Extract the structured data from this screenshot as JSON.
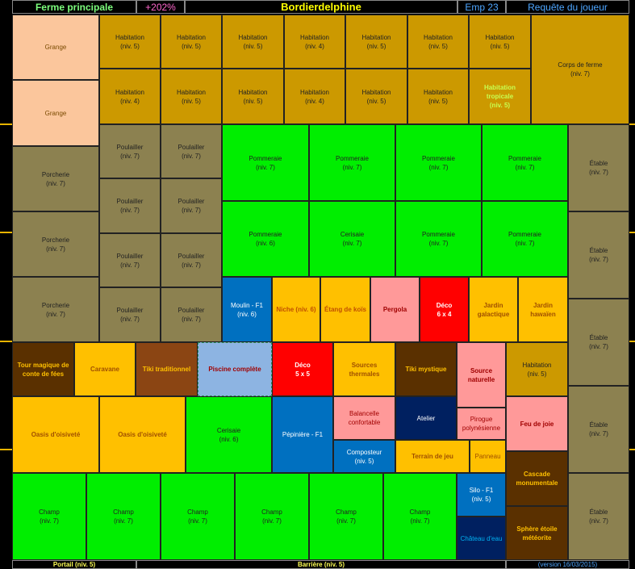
{
  "header": {
    "farm": "Ferme principale",
    "bonus": "+202%",
    "player": "Bordierdelphine",
    "emp": "Emp 23",
    "request": "Requête du joueur"
  },
  "footer": {
    "portal": "Portail (niv. 5)",
    "barrier": "Barrière (niv. 5)",
    "version": "(version 16/03/2015)"
  },
  "colors": {
    "grange": "#fbc69c",
    "habitation": "#cc9900",
    "poulailler": "#8c8150",
    "pommeraie": "#00ee00",
    "moulin": "#0070c0",
    "deco_yellow": "#ffc000",
    "pergola": "#ff9999",
    "deco_red": "#ff0000",
    "piscine": "#8db4e2",
    "dark_brown": "#5a3000",
    "tiki": "#8b4513",
    "navy": "#002060"
  },
  "cells": [
    {
      "name": "Grange",
      "color": "#fbc69c",
      "fg": "#7a4a00",
      "bold": false
    },
    {
      "name": "Grange",
      "color": "#fbc69c",
      "fg": "#7a4a00",
      "bold": false
    },
    {
      "name": "Habitation\n(niv. 5)",
      "color": "#cc9900",
      "fg": "#222",
      "bold": false
    },
    {
      "name": "Habitation\n(niv. 5)",
      "color": "#cc9900",
      "fg": "#222",
      "bold": false
    },
    {
      "name": "Habitation\n(niv. 5)",
      "color": "#cc9900",
      "fg": "#222",
      "bold": false
    },
    {
      "name": "Habitation\n(niv. 4)",
      "color": "#cc9900",
      "fg": "#222",
      "bold": false
    },
    {
      "name": "Habitation\n(niv. 5)",
      "color": "#cc9900",
      "fg": "#222",
      "bold": false
    },
    {
      "name": "Habitation\n(niv. 5)",
      "color": "#cc9900",
      "fg": "#222",
      "bold": false
    },
    {
      "name": "Habitation\n(niv. 5)",
      "color": "#cc9900",
      "fg": "#222",
      "bold": false
    },
    {
      "name": "Corps de ferme\n(niv. 7)",
      "color": "#cc9900",
      "fg": "#222",
      "bold": false
    },
    {
      "name": "Habitation\n(niv. 4)",
      "color": "#cc9900",
      "fg": "#222",
      "bold": false
    },
    {
      "name": "Habitation\n(niv. 5)",
      "color": "#cc9900",
      "fg": "#222",
      "bold": false
    },
    {
      "name": "Habitation\n(niv. 5)",
      "color": "#cc9900",
      "fg": "#222",
      "bold": false
    },
    {
      "name": "Habitation\n(niv. 4)",
      "color": "#cc9900",
      "fg": "#222",
      "bold": false
    },
    {
      "name": "Habitation\n(niv. 5)",
      "color": "#cc9900",
      "fg": "#222",
      "bold": false
    },
    {
      "name": "Habitation\n(niv. 5)",
      "color": "#cc9900",
      "fg": "#222",
      "bold": false
    },
    {
      "name": "Habitation\ntropicale\n(niv. 5)",
      "color": "#cc9900",
      "fg": "#c8ff50",
      "bold": true
    },
    {
      "name": "Porcherie\n(niv. 7)",
      "color": "#8c8150",
      "fg": "#222",
      "bold": false
    },
    {
      "name": "Porcherie\n(niv. 7)",
      "color": "#8c8150",
      "fg": "#222",
      "bold": false
    },
    {
      "name": "Porcherie\n(niv. 7)",
      "color": "#8c8150",
      "fg": "#222",
      "bold": false
    },
    {
      "name": "Poulailler\n(niv. 7)",
      "color": "#8c8150",
      "fg": "#222",
      "bold": false
    },
    {
      "name": "Poulailler\n(niv. 7)",
      "color": "#8c8150",
      "fg": "#222",
      "bold": false
    },
    {
      "name": "Poulailler\n(niv. 7)",
      "color": "#8c8150",
      "fg": "#222",
      "bold": false
    },
    {
      "name": "Poulailler\n(niv. 7)",
      "color": "#8c8150",
      "fg": "#222",
      "bold": false
    },
    {
      "name": "Poulailler\n(niv. 7)",
      "color": "#8c8150",
      "fg": "#222",
      "bold": false
    },
    {
      "name": "Poulailler\n(niv. 7)",
      "color": "#8c8150",
      "fg": "#222",
      "bold": false
    },
    {
      "name": "Poulailler\n(niv. 7)",
      "color": "#8c8150",
      "fg": "#222",
      "bold": false
    },
    {
      "name": "Poulailler\n(niv. 7)",
      "color": "#8c8150",
      "fg": "#222",
      "bold": false
    },
    {
      "name": "Pommeraie\n(niv. 7)",
      "color": "#00ee00",
      "fg": "#222",
      "bold": false
    },
    {
      "name": "Pommeraie\n(niv. 7)",
      "color": "#00ee00",
      "fg": "#222",
      "bold": false
    },
    {
      "name": "Pommeraie\n(niv. 7)",
      "color": "#00ee00",
      "fg": "#222",
      "bold": false
    },
    {
      "name": "Pommeraie\n(niv. 7)",
      "color": "#00ee00",
      "fg": "#222",
      "bold": false
    },
    {
      "name": "Pommeraie\n(niv. 6)",
      "color": "#00ee00",
      "fg": "#222",
      "bold": false
    },
    {
      "name": "Cerisaie\n(niv. 7)",
      "color": "#00ee00",
      "fg": "#222",
      "bold": false
    },
    {
      "name": "Pommeraie\n(niv. 7)",
      "color": "#00ee00",
      "fg": "#222",
      "bold": false
    },
    {
      "name": "Pommeraie\n(niv. 7)",
      "color": "#00ee00",
      "fg": "#222",
      "bold": false
    },
    {
      "name": "Étable\n(niv. 7)",
      "color": "#8c8150",
      "fg": "#222",
      "bold": false
    },
    {
      "name": "Étable\n(niv. 7)",
      "color": "#8c8150",
      "fg": "#222",
      "bold": false
    },
    {
      "name": "Étable\n(niv. 7)",
      "color": "#8c8150",
      "fg": "#222",
      "bold": false
    },
    {
      "name": "Étable\n(niv. 7)",
      "color": "#8c8150",
      "fg": "#222",
      "bold": false
    },
    {
      "name": "Étable\n(niv. 7)",
      "color": "#8c8150",
      "fg": "#222",
      "bold": false
    },
    {
      "name": "Moulin - F1\n(niv. 6)",
      "color": "#0070c0",
      "fg": "#fff",
      "bold": false
    },
    {
      "name": "Niche (niv. 6)",
      "color": "#ffc000",
      "fg": "#c05000",
      "bold": true
    },
    {
      "name": "Étang de koïs",
      "color": "#ffc000",
      "fg": "#c05000",
      "bold": true
    },
    {
      "name": "Pergola",
      "color": "#ff9999",
      "fg": "#a00000",
      "bold": true
    },
    {
      "name": "Déco\n6 x 4",
      "color": "#ff0000",
      "fg": "#fff",
      "bold": true
    },
    {
      "name": "Jardin\ngalactique",
      "color": "#ffc000",
      "fg": "#a05000",
      "bold": true
    },
    {
      "name": "Jardin hawaïen",
      "color": "#ffc000",
      "fg": "#a05000",
      "bold": true
    },
    {
      "name": "Tour magique de\nconte de fées",
      "color": "#5a3000",
      "fg": "#ffc000",
      "bold": true
    },
    {
      "name": "Caravane",
      "color": "#ffc000",
      "fg": "#a05000",
      "bold": true
    },
    {
      "name": "Tiki traditionnel",
      "color": "#8b4513",
      "fg": "#ffc000",
      "bold": true
    },
    {
      "name": "Piscine complète",
      "color": "#8db4e2",
      "fg": "#a00000",
      "bold": true
    },
    {
      "name": "Déco\n5 x 5",
      "color": "#ff0000",
      "fg": "#fff",
      "bold": true
    },
    {
      "name": "Sources thermales",
      "color": "#ffc000",
      "fg": "#a05000",
      "bold": true
    },
    {
      "name": "Tiki mystique",
      "color": "#5a3000",
      "fg": "#ffc000",
      "bold": true
    },
    {
      "name": "Source\nnaturelle",
      "color": "#ff9999",
      "fg": "#a00000",
      "bold": true
    },
    {
      "name": "Habitation\n(niv. 5)",
      "color": "#cc9900",
      "fg": "#222",
      "bold": false
    },
    {
      "name": "Oasis d'oisiveté",
      "color": "#ffc000",
      "fg": "#a05000",
      "bold": true
    },
    {
      "name": "Oasis d'oisiveté",
      "color": "#ffc000",
      "fg": "#a05000",
      "bold": true
    },
    {
      "name": "Cerisaie\n(niv. 6)",
      "color": "#00ee00",
      "fg": "#222",
      "bold": false
    },
    {
      "name": "Pépinière - F1",
      "color": "#0070c0",
      "fg": "#fff",
      "bold": false
    },
    {
      "name": "Balancelle\nconfortable",
      "color": "#ff9999",
      "fg": "#a00000",
      "bold": false
    },
    {
      "name": "Atelier",
      "color": "#002060",
      "fg": "#fff",
      "bold": false
    },
    {
      "name": "Pirogue\npolynésienne",
      "color": "#ff9999",
      "fg": "#a00000",
      "bold": false
    },
    {
      "name": "Feu de joie",
      "color": "#ff9999",
      "fg": "#a00000",
      "bold": true
    },
    {
      "name": "Composteur\n(niv. 5)",
      "color": "#0070c0",
      "fg": "#fff",
      "bold": false
    },
    {
      "name": "Terrain de jeu",
      "color": "#ffc000",
      "fg": "#a05000",
      "bold": true
    },
    {
      "name": "Panneau",
      "color": "#ffc000",
      "fg": "#a05000",
      "bold": false
    },
    {
      "name": "Cascade\nmonumentale",
      "color": "#5a3000",
      "fg": "#ffc000",
      "bold": true
    },
    {
      "name": "Champ\n(niv. 7)",
      "color": "#00ee00",
      "fg": "#222",
      "bold": false
    },
    {
      "name": "Champ\n(niv. 7)",
      "color": "#00ee00",
      "fg": "#222",
      "bold": false
    },
    {
      "name": "Champ\n(niv. 7)",
      "color": "#00ee00",
      "fg": "#222",
      "bold": false
    },
    {
      "name": "Champ\n(niv. 7)",
      "color": "#00ee00",
      "fg": "#222",
      "bold": false
    },
    {
      "name": "Champ\n(niv. 7)",
      "color": "#00ee00",
      "fg": "#222",
      "bold": false
    },
    {
      "name": "Champ\n(niv. 7)",
      "color": "#00ee00",
      "fg": "#222",
      "bold": false
    },
    {
      "name": "Silo - F1\n(niv. 5)",
      "color": "#0070c0",
      "fg": "#fff",
      "bold": false
    },
    {
      "name": "Château d'eau",
      "color": "#002060",
      "fg": "#00b0f0",
      "bold": false
    },
    {
      "name": "Sphère étoile\nmétéorite",
      "color": "#5a3000",
      "fg": "#ffc000",
      "bold": true
    }
  ]
}
